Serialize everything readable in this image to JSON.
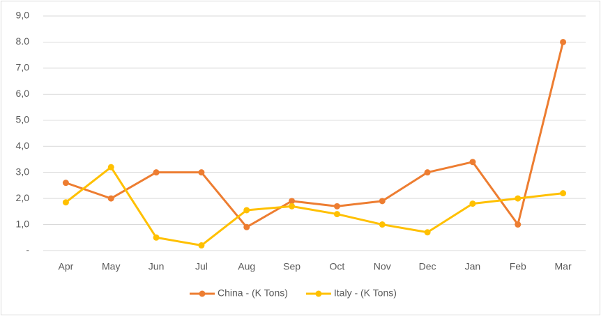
{
  "chart_data": {
    "type": "line",
    "categories": [
      "Apr",
      "May",
      "Jun",
      "Jul",
      "Aug",
      "Sep",
      "Oct",
      "Nov",
      "Dec",
      "Jan",
      "Feb",
      "Mar"
    ],
    "series": [
      {
        "name": "China - (K Tons)",
        "color": "#ED7D31",
        "values": [
          2.6,
          2.0,
          3.0,
          3.0,
          0.9,
          1.9,
          1.7,
          1.9,
          3.0,
          3.4,
          1.0,
          8.0
        ]
      },
      {
        "name": "Italy - (K Tons)",
        "color": "#FFC000",
        "values": [
          1.85,
          3.2,
          0.5,
          0.2,
          1.55,
          1.7,
          1.4,
          1.0,
          0.7,
          1.8,
          2.0,
          2.2
        ]
      }
    ],
    "ylim": [
      0,
      9
    ],
    "yticks": [
      {
        "value": 0,
        "label": "-"
      },
      {
        "value": 1,
        "label": "1,0"
      },
      {
        "value": 2,
        "label": "2,0"
      },
      {
        "value": 3,
        "label": "3,0"
      },
      {
        "value": 4,
        "label": "4,0"
      },
      {
        "value": 5,
        "label": "5,0"
      },
      {
        "value": 6,
        "label": "6,0"
      },
      {
        "value": 7,
        "label": "7,0"
      },
      {
        "value": 8,
        "label": "8.0"
      },
      {
        "value": 9,
        "label": "9,0"
      }
    ],
    "grid": true,
    "legend": "bottom"
  }
}
